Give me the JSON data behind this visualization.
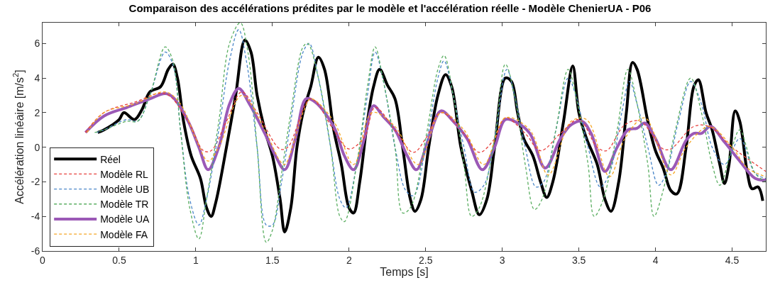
{
  "chart_data": {
    "type": "line",
    "title": "Comparaison des accélérations prédites par le modèle et l'accélération réelle - Modèle ChenierUA - P06",
    "xlabel": "Temps [s]",
    "ylabel": "Accélération linéaire [m/s$^{2}$]",
    "xlim": [
      0,
      4.72
    ],
    "ylim": [
      -6,
      7.2
    ],
    "xticks": [
      0,
      0.5,
      1,
      1.5,
      2,
      2.5,
      3,
      3.5,
      4,
      4.5
    ],
    "yticks": [
      -6,
      -4,
      -2,
      0,
      2,
      4,
      6
    ],
    "grid": false,
    "legend": "bottom left",
    "marker": "none",
    "series": [
      {
        "name": "Réel",
        "color": "#000000",
        "line_style": "solid",
        "x": [
          0.36,
          0.4,
          0.5,
          0.53,
          0.6,
          0.65,
          0.7,
          0.77,
          0.82,
          0.85,
          0.88,
          0.92,
          0.97,
          1.03,
          1.07,
          1.1,
          1.13,
          1.2,
          1.26,
          1.32,
          1.36,
          1.4,
          1.45,
          1.5,
          1.55,
          1.58,
          1.62,
          1.66,
          1.7,
          1.75,
          1.8,
          1.84,
          1.9,
          1.95,
          2.0,
          2.03,
          2.07,
          2.12,
          2.16,
          2.2,
          2.25,
          2.3,
          2.35,
          2.4,
          2.43,
          2.47,
          2.52,
          2.58,
          2.63,
          2.67,
          2.73,
          2.8,
          2.85,
          2.9,
          2.95,
          3.02,
          3.06,
          3.1,
          3.14,
          3.2,
          3.25,
          3.29,
          3.33,
          3.4,
          3.46,
          3.5,
          3.55,
          3.62,
          3.67,
          3.71,
          3.76,
          3.81,
          3.85,
          3.88,
          3.95,
          4.0,
          4.05,
          4.1,
          4.14,
          4.2,
          4.25,
          4.28,
          4.33,
          4.37,
          4.42,
          4.45,
          4.48,
          4.52,
          4.55,
          4.6,
          4.63,
          4.67,
          4.7
        ],
        "values": [
          0.85,
          1.0,
          1.6,
          2.0,
          1.6,
          2.2,
          3.2,
          3.5,
          4.5,
          4.8,
          4.0,
          1.5,
          -0.5,
          -1.8,
          -3.5,
          -4.0,
          -3.2,
          0,
          3,
          6.2,
          5.5,
          3.0,
          1.0,
          -0.5,
          -3,
          -4.9,
          -3.5,
          0,
          2.0,
          3.5,
          5.2,
          4.5,
          1.0,
          -1.0,
          -3.5,
          -3.8,
          -2.0,
          1.5,
          3.5,
          4.5,
          3.6,
          2.8,
          0,
          -3.0,
          -3.7,
          -3.0,
          0,
          3.0,
          4.2,
          3.5,
          0,
          -2.5,
          -3.9,
          -3.0,
          0,
          4.0,
          3.8,
          2.0,
          0.5,
          -0.5,
          -2.0,
          -2.9,
          -2.0,
          1.5,
          4.7,
          2.0,
          0.5,
          -1.0,
          -3.0,
          -3.7,
          -2.0,
          2.0,
          4.9,
          4.5,
          1.5,
          -0.2,
          -1.2,
          -2.5,
          -2.7,
          0,
          3.5,
          3.9,
          2.0,
          1.0,
          -1.0,
          -2.1,
          -1.0,
          2.1,
          1.5,
          -1.5,
          -2.4,
          -2.3,
          -3.1
        ]
      },
      {
        "name": "Modèle RL",
        "color": "#e8403c",
        "line_style": "dashed",
        "x": [
          0.28,
          0.4,
          0.6,
          0.8,
          0.95,
          1.05,
          1.1,
          1.2,
          1.3,
          1.4,
          1.55,
          1.6,
          1.75,
          1.9,
          2.0,
          2.1,
          2.17,
          2.3,
          2.42,
          2.5,
          2.6,
          2.75,
          2.85,
          2.95,
          3.02,
          3.15,
          3.25,
          3.38,
          3.5,
          3.62,
          3.68,
          3.8,
          3.9,
          4.05,
          4.1,
          4.25,
          4.35,
          4.5,
          4.72
        ],
        "values": [
          0.85,
          2.0,
          2.6,
          3.1,
          1.5,
          -0.2,
          -0.2,
          1.5,
          3.2,
          2.0,
          -0.1,
          0,
          2.8,
          1.0,
          -0.1,
          0.6,
          2.3,
          1.0,
          -0.3,
          0.5,
          2.0,
          0.8,
          -0.3,
          0.5,
          1.7,
          0.8,
          -0.2,
          0.8,
          1.6,
          0,
          -0.2,
          1.3,
          1.5,
          -0.1,
          -0.1,
          1.2,
          1.2,
          0,
          -1.4
        ]
      },
      {
        "name": "Modèle UB",
        "color": "#4a86c8",
        "line_style": "dashed",
        "x": [
          0.35,
          0.4,
          0.55,
          0.62,
          0.7,
          0.8,
          0.85,
          0.9,
          0.96,
          1.02,
          1.07,
          1.15,
          1.22,
          1.28,
          1.33,
          1.4,
          1.46,
          1.5,
          1.56,
          1.62,
          1.7,
          1.74,
          1.8,
          1.88,
          1.94,
          1.98,
          2.05,
          2.12,
          2.17,
          2.22,
          2.3,
          2.37,
          2.42,
          2.5,
          2.58,
          2.62,
          2.68,
          2.75,
          2.82,
          2.88,
          2.95,
          3.03,
          3.08,
          3.15,
          3.22,
          3.27,
          3.35,
          3.43,
          3.48,
          3.56,
          3.64,
          3.7,
          3.78,
          3.83,
          3.88,
          3.95,
          4.02,
          4.07,
          4.15,
          4.23,
          4.3,
          4.37,
          4.45,
          4.55,
          4.65,
          4.72
        ],
        "values": [
          0.85,
          1.0,
          1.6,
          1.5,
          3.0,
          5.5,
          4.8,
          1.0,
          -3.0,
          -4.5,
          -3.0,
          1.0,
          5.0,
          6.8,
          5.0,
          0,
          -4.5,
          -4.5,
          -2.0,
          1.5,
          5.5,
          6.0,
          4.0,
          0,
          -3.0,
          -3.5,
          -1.0,
          3.0,
          5.5,
          4.0,
          0,
          -2.5,
          -2.8,
          0,
          4.0,
          5.0,
          3.0,
          0,
          -2.6,
          -2.2,
          0.5,
          4.5,
          3.0,
          0,
          -2.3,
          -2.0,
          1.0,
          4.0,
          3.0,
          0,
          -2.3,
          -1.5,
          2.0,
          3.8,
          2.5,
          0,
          -2.2,
          -1.5,
          1.5,
          3.8,
          2.5,
          0,
          -1.0,
          0.5,
          -1.5,
          -1.8
        ]
      },
      {
        "name": "Modèle TR",
        "color": "#5aae61",
        "line_style": "dashed",
        "x": [
          0.34,
          0.4,
          0.55,
          0.62,
          0.7,
          0.8,
          0.85,
          0.9,
          0.96,
          1.02,
          1.07,
          1.15,
          1.22,
          1.29,
          1.34,
          1.4,
          1.46,
          1.5,
          1.56,
          1.62,
          1.7,
          1.73,
          1.8,
          1.88,
          1.94,
          1.97,
          2.05,
          2.12,
          2.17,
          2.22,
          2.3,
          2.35,
          2.4,
          2.5,
          2.58,
          2.62,
          2.68,
          2.75,
          2.8,
          2.85,
          2.95,
          3.02,
          3.08,
          3.15,
          3.21,
          3.26,
          3.35,
          3.43,
          3.48,
          3.56,
          3.6,
          3.66,
          3.75,
          3.82,
          3.88,
          3.95,
          3.99,
          4.05,
          4.13,
          4.23,
          4.3,
          4.37,
          4.42,
          4.5,
          4.55,
          4.65,
          4.72
        ],
        "values": [
          0.85,
          1.0,
          1.5,
          1.5,
          3.0,
          5.8,
          5.0,
          1.0,
          -3.5,
          -5.3,
          -3.0,
          1.5,
          6.0,
          7.2,
          5.5,
          0,
          -5.5,
          -4.8,
          -1.5,
          2.0,
          5.8,
          6.0,
          4.0,
          0,
          -4.0,
          -4.3,
          -1.0,
          3.5,
          5.8,
          4.0,
          0,
          -3.8,
          -3.5,
          0.5,
          4.5,
          5.3,
          3.0,
          -1.0,
          -4.0,
          -3.5,
          0.5,
          4.8,
          3.0,
          -1.0,
          -3.6,
          -3.0,
          1.0,
          4.5,
          3.0,
          -1.0,
          -4.0,
          -3.0,
          1.0,
          4.5,
          2.5,
          -1.0,
          -4.0,
          -2.5,
          1.0,
          4.0,
          2.0,
          -1.0,
          -2.2,
          0,
          1.0,
          -1.5,
          -2.0
        ]
      },
      {
        "name": "Modèle UA",
        "color": "#9b59b6",
        "line_style": "solid",
        "x": [
          0.28,
          0.4,
          0.55,
          0.7,
          0.8,
          0.85,
          0.95,
          1.02,
          1.08,
          1.15,
          1.22,
          1.28,
          1.35,
          1.45,
          1.52,
          1.58,
          1.65,
          1.72,
          1.78,
          1.9,
          1.97,
          2.03,
          2.1,
          2.16,
          2.22,
          2.3,
          2.38,
          2.44,
          2.52,
          2.6,
          2.68,
          2.77,
          2.87,
          2.95,
          3.02,
          3.1,
          3.18,
          3.28,
          3.38,
          3.45,
          3.52,
          3.58,
          3.67,
          3.75,
          3.82,
          3.88,
          3.93,
          4.0,
          4.1,
          4.2,
          4.25,
          4.3,
          4.36,
          4.45,
          4.55,
          4.65,
          4.72
        ],
        "values": [
          0.85,
          1.8,
          2.3,
          2.8,
          3.1,
          2.9,
          1.5,
          0,
          -1.3,
          0,
          2.5,
          3.4,
          2.5,
          0.8,
          -0.5,
          -1.3,
          0.5,
          2.8,
          2.6,
          1.2,
          -0.5,
          -1.3,
          0.5,
          2.4,
          1.8,
          1.0,
          -0.5,
          -1.3,
          0.5,
          2.1,
          1.5,
          0.5,
          -1.3,
          0,
          1.6,
          1.4,
          0.8,
          -1.2,
          0.5,
          1.3,
          1.5,
          0.8,
          -1.4,
          0,
          1.0,
          1.1,
          1.4,
          0.5,
          -1.3,
          0.4,
          0.8,
          0.8,
          1.2,
          0.3,
          -0.8,
          -1.8,
          -1.9
        ]
      },
      {
        "name": "Modèle FA",
        "color": "#f5a623",
        "line_style": "dashed",
        "x": [
          0.29,
          0.4,
          0.6,
          0.8,
          0.9,
          1.0,
          1.08,
          1.15,
          1.3,
          1.45,
          1.55,
          1.58,
          1.7,
          1.75,
          1.9,
          2.03,
          2.15,
          2.3,
          2.45,
          2.6,
          2.75,
          2.88,
          3.02,
          3.18,
          3.3,
          3.45,
          3.55,
          3.7,
          3.8,
          3.93,
          4.1,
          4.2,
          4.35,
          4.5,
          4.6,
          4.72
        ],
        "values": [
          0.85,
          2.0,
          2.5,
          3.2,
          2.5,
          0.5,
          -0.8,
          0,
          3.0,
          1.0,
          -0.8,
          -1.0,
          2.0,
          2.8,
          1.5,
          -1.0,
          2.0,
          1.2,
          -1.0,
          2.0,
          1.0,
          -1.0,
          1.7,
          1.0,
          -1.6,
          1.5,
          1.6,
          -1.7,
          0.5,
          1.7,
          -1.6,
          0,
          1.2,
          0,
          -1.2,
          -1.7
        ]
      }
    ]
  }
}
